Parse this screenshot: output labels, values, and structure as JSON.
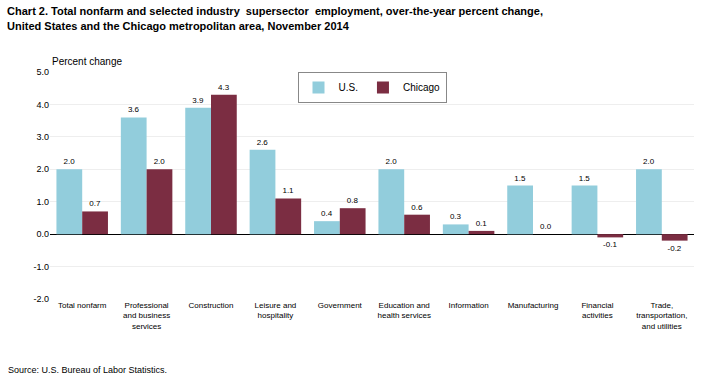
{
  "chart_data": {
    "type": "bar",
    "title": "Chart 2. Total nonfarm and selected industry  supersector  employment, over-the-year percent change,\nUnited States and the Chicago metropolitan area, November 2014",
    "y_label": "Percent change",
    "annotations": [
      "Source: U.S. Bureau of Labor Statistics."
    ],
    "categories": [
      "Total nonfarm",
      "Professional\nand business\nservices",
      "Construction",
      "Leisure and\nhospitality",
      "Government",
      "Education and\nhealth services",
      "Information",
      "Manufacturing",
      "Financial\nactivities",
      "Trade,\ntransportation,\nand utilities"
    ],
    "series": [
      {
        "name": "U.S.",
        "color": "#92CDDC",
        "values": [
          2.0,
          3.6,
          3.9,
          2.6,
          0.4,
          2.0,
          0.3,
          1.5,
          1.5,
          2.0
        ],
        "value_labels": [
          "2.0",
          "3.6",
          "3.9",
          "2.6",
          "0.4",
          "2.0",
          "0.3",
          "1.5",
          "1.5",
          "2.0"
        ]
      },
      {
        "name": "Chicago",
        "color": "#7B2D42",
        "values": [
          0.7,
          2.0,
          4.3,
          1.1,
          0.8,
          0.6,
          0.1,
          0.0,
          -0.1,
          -0.2
        ],
        "value_labels": [
          "0.7",
          "2.0",
          "4.3",
          "1.1",
          "0.8",
          "0.6",
          "0.1",
          "0.0",
          "-0.1",
          "-0.2"
        ]
      }
    ],
    "ylim": [
      -2.0,
      5.0
    ],
    "yticks": [
      {
        "value": -2.0,
        "label": "-2.0"
      },
      {
        "value": -1.0,
        "label": "-1.0"
      },
      {
        "value": 0.0,
        "label": "0.0"
      },
      {
        "value": 1.0,
        "label": "1.0"
      },
      {
        "value": 2.0,
        "label": "2.0"
      },
      {
        "value": 3.0,
        "label": "3.0"
      },
      {
        "value": 4.0,
        "label": "4.0"
      },
      {
        "value": 5.0,
        "label": "5.0"
      }
    ],
    "grid": true,
    "legend": "upper center",
    "data_labels": true
  }
}
